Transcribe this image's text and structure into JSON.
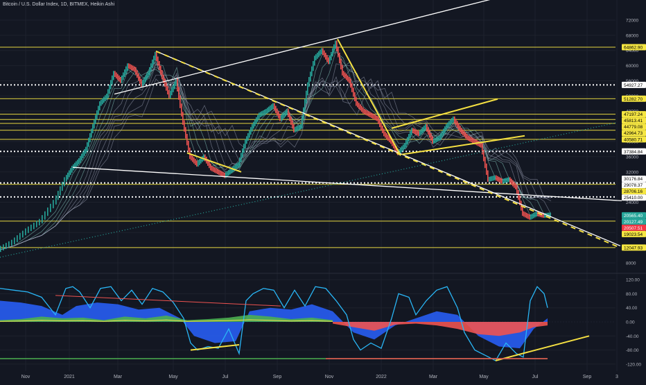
{
  "header": {
    "title": "Bitcoin / U.S. Dollar Index, 1D, BITMEX, Heikin Ashi"
  },
  "colors": {
    "background": "#131722",
    "grid": "#1e222d",
    "axis_text": "#b2b5be",
    "bull": "#26a69a",
    "bear": "#ef5350",
    "level": "#e6d740",
    "trend_yellow": "#f5e042",
    "trend_white": "#ffffff",
    "label_yellow_bg": "#f5e642",
    "label_white_bg": "#ffffff",
    "label_green_bg": "#26a69a",
    "label_red_bg": "#f23645",
    "osc_blue": "#2962ff",
    "osc_line": "#29b6f6",
    "osc_green": "#4caf50",
    "osc_red": "#ef5350",
    "osc_yellow": "#f5e042"
  },
  "chart_data": [
    {
      "type": "line",
      "title": "Bitcoin / U.S. Dollar Index, 1D, BITMEX, Heikin Ashi",
      "x_ticks": [
        "Nov",
        "2021",
        "Mar",
        "May",
        "Jul",
        "Sep",
        "Nov",
        "2022",
        "Mar",
        "May",
        "Jul",
        "Sep",
        "3"
      ],
      "y_ticks": [
        72000,
        68000,
        64000,
        60000,
        56000,
        52000,
        48000,
        44000,
        40000,
        36000,
        32000,
        28000,
        24000,
        20000,
        16000,
        12000,
        8000
      ],
      "ylim": [
        6000,
        74000
      ],
      "price_labels": [
        {
          "value": "64862.90",
          "style": "yellow"
        },
        {
          "value": "54927.27",
          "style": "white"
        },
        {
          "value": "51282.70",
          "style": "yellow"
        },
        {
          "value": "47197.24",
          "style": "yellow"
        },
        {
          "value": "45813.41",
          "style": "yellow"
        },
        {
          "value": "44779.08",
          "style": "yellow"
        },
        {
          "value": "42964.73",
          "style": "yellow"
        },
        {
          "value": "40580.71",
          "style": "yellow"
        },
        {
          "value": "37384.84",
          "style": "white"
        },
        {
          "value": "30176.84",
          "style": "white"
        },
        {
          "value": "29078.37",
          "style": "white"
        },
        {
          "value": "28706.16",
          "style": "yellow"
        },
        {
          "value": "25410.00",
          "style": "white"
        },
        {
          "value": "20565.40",
          "style": "green"
        },
        {
          "value": "20127.49",
          "style": "green"
        },
        {
          "value": "20507.51",
          "style": "red"
        },
        {
          "value": "19023.54",
          "style": "yellow"
        },
        {
          "value": "12047.93",
          "style": "yellow"
        }
      ],
      "yellow_levels": [
        64862.9,
        51282.7,
        47197.24,
        45813.41,
        44779.08,
        42964.73,
        40580.71,
        28706.16,
        19023.54,
        12047.93
      ],
      "dotted_levels": [
        54927.27,
        37384.84,
        29078.37,
        25410.0
      ],
      "series": [
        {
          "values": [
            [
              0,
              11500
            ],
            [
              20,
              13500
            ],
            [
              40,
              16500
            ],
            [
              60,
              19000
            ],
            [
              80,
              24000
            ],
            [
              95,
              30000
            ],
            [
              105,
              33000
            ],
            [
              115,
              35000
            ],
            [
              125,
              38000
            ],
            [
              135,
              44000
            ],
            [
              145,
              50000
            ],
            [
              155,
              52000
            ],
            [
              165,
              58000
            ],
            [
              175,
              56000
            ],
            [
              185,
              60000
            ],
            [
              195,
              59000
            ],
            [
              205,
              55000
            ],
            [
              215,
              58000
            ],
            [
              225,
              63000
            ],
            [
              235,
              57000
            ],
            [
              245,
              52000
            ],
            [
              255,
              56000
            ],
            [
              265,
              45000
            ],
            [
              275,
              36000
            ],
            [
              285,
              34000
            ],
            [
              295,
              36000
            ],
            [
              305,
              33000
            ],
            [
              315,
              32000
            ],
            [
              325,
              31000
            ],
            [
              335,
              32500
            ],
            [
              345,
              34000
            ],
            [
              355,
              40000
            ],
            [
              365,
              44000
            ],
            [
              375,
              47000
            ],
            [
              385,
              48000
            ],
            [
              395,
              49500
            ],
            [
              405,
              46000
            ],
            [
              415,
              48000
            ],
            [
              425,
              43000
            ],
            [
              435,
              44000
            ],
            [
              445,
              55000
            ],
            [
              455,
              62000
            ],
            [
              465,
              64000
            ],
            [
              475,
              61000
            ],
            [
              485,
              66000
            ],
            [
              495,
              58000
            ],
            [
              505,
              56000
            ],
            [
              515,
              50000
            ],
            [
              525,
              48000
            ],
            [
              535,
              47000
            ],
            [
              545,
              46000
            ],
            [
              555,
              42000
            ],
            [
              565,
              40000
            ],
            [
              575,
              37000
            ],
            [
              585,
              39000
            ],
            [
              595,
              43000
            ],
            [
              605,
              42000
            ],
            [
              615,
              44000
            ],
            [
              625,
              40000
            ],
            [
              635,
              41000
            ],
            [
              645,
              44000
            ],
            [
              655,
              46000
            ],
            [
              665,
              43000
            ],
            [
              675,
              41000
            ],
            [
              685,
              40000
            ],
            [
              695,
              39000
            ],
            [
              705,
              30000
            ],
            [
              715,
              30500
            ],
            [
              725,
              29500
            ],
            [
              735,
              30000
            ],
            [
              745,
              28000
            ],
            [
              755,
              21000
            ],
            [
              765,
              20000
            ],
            [
              775,
              21000
            ],
            [
              785,
              20500
            ],
            [
              795,
              20700
            ]
          ]
        }
      ],
      "trendlines": [
        {
          "style": "white",
          "from": [
            165,
            52500
          ],
          "to": [
            720,
            78000
          ]
        },
        {
          "style": "white",
          "from": [
            225,
            63800
          ],
          "to": [
            895,
            12500
          ]
        },
        {
          "style": "white",
          "from": [
            105,
            33200
          ],
          "to": [
            897,
            24400
          ]
        },
        {
          "style": "yellow_dashed",
          "from": [
            225,
            63800
          ],
          "to": [
            895,
            12000
          ]
        },
        {
          "style": "yellow",
          "from": [
            565,
            43500
          ],
          "to": [
            718,
            51200
          ]
        },
        {
          "style": "yellow",
          "from": [
            580,
            36600
          ],
          "to": [
            757,
            41500
          ]
        },
        {
          "style": "yellow",
          "from": [
            270,
            37000
          ],
          "to": [
            348,
            32000
          ]
        },
        {
          "style": "yellow",
          "from": [
            487,
            67000
          ],
          "to": [
            578,
            36300
          ]
        },
        {
          "style": "teal_dotted",
          "from": [
            0,
            9500
          ],
          "to": [
            890,
            45000
          ]
        }
      ]
    },
    {
      "type": "area",
      "y_ticks": [
        "120.00",
        "80.00",
        "40.00",
        "0.00",
        "-40.00",
        "-80.00",
        "-120.00"
      ],
      "ylim": [
        -130,
        130
      ],
      "series": [
        {
          "values": [
            [
              0,
              95
            ],
            [
              20,
              90
            ],
            [
              40,
              85
            ],
            [
              60,
              70
            ],
            [
              80,
              20
            ],
            [
              95,
              95
            ],
            [
              105,
              100
            ],
            [
              115,
              85
            ],
            [
              130,
              40
            ],
            [
              145,
              95
            ],
            [
              160,
              100
            ],
            [
              175,
              60
            ],
            [
              190,
              90
            ],
            [
              205,
              50
            ],
            [
              220,
              95
            ],
            [
              235,
              85
            ],
            [
              250,
              55
            ],
            [
              265,
              10
            ],
            [
              275,
              -60
            ],
            [
              285,
              -80
            ],
            [
              300,
              -70
            ],
            [
              315,
              -75
            ],
            [
              330,
              -20
            ],
            [
              345,
              -90
            ],
            [
              355,
              60
            ],
            [
              365,
              80
            ],
            [
              380,
              95
            ],
            [
              395,
              90
            ],
            [
              410,
              40
            ],
            [
              425,
              90
            ],
            [
              440,
              45
            ],
            [
              455,
              100
            ],
            [
              470,
              95
            ],
            [
              485,
              60
            ],
            [
              500,
              20
            ],
            [
              510,
              -50
            ],
            [
              520,
              -80
            ],
            [
              535,
              -60
            ],
            [
              550,
              -75
            ],
            [
              565,
              10
            ],
            [
              575,
              80
            ],
            [
              590,
              70
            ],
            [
              600,
              20
            ],
            [
              615,
              60
            ],
            [
              630,
              90
            ],
            [
              645,
              100
            ],
            [
              660,
              40
            ],
            [
              670,
              -30
            ],
            [
              685,
              -80
            ],
            [
              700,
              -95
            ],
            [
              715,
              -110
            ],
            [
              730,
              -60
            ],
            [
              745,
              -90
            ],
            [
              755,
              -100
            ],
            [
              765,
              60
            ],
            [
              775,
              100
            ],
            [
              785,
              80
            ],
            [
              790,
              40
            ]
          ]
        },
        {
          "values": [
            [
              0,
              60
            ],
            [
              30,
              55
            ],
            [
              60,
              45
            ],
            [
              90,
              20
            ],
            [
              110,
              45
            ],
            [
              140,
              55
            ],
            [
              170,
              50
            ],
            [
              200,
              35
            ],
            [
              230,
              40
            ],
            [
              260,
              10
            ],
            [
              280,
              -40
            ],
            [
              310,
              -60
            ],
            [
              340,
              -55
            ],
            [
              360,
              30
            ],
            [
              390,
              40
            ],
            [
              420,
              35
            ],
            [
              450,
              50
            ],
            [
              480,
              30
            ],
            [
              510,
              -30
            ],
            [
              540,
              -50
            ],
            [
              570,
              -10
            ],
            [
              600,
              10
            ],
            [
              630,
              30
            ],
            [
              660,
              20
            ],
            [
              690,
              -40
            ],
            [
              720,
              -70
            ],
            [
              750,
              -75
            ],
            [
              770,
              -20
            ],
            [
              790,
              10
            ]
          ]
        },
        {
          "values": [
            [
              0,
              5
            ],
            [
              30,
              8
            ],
            [
              60,
              15
            ],
            [
              90,
              10
            ],
            [
              120,
              12
            ],
            [
              150,
              5
            ],
            [
              180,
              15
            ],
            [
              210,
              10
            ],
            [
              240,
              18
            ],
            [
              270,
              5
            ],
            [
              300,
              8
            ],
            [
              330,
              12
            ],
            [
              360,
              20
            ],
            [
              390,
              15
            ],
            [
              420,
              8
            ],
            [
              450,
              12
            ],
            [
              480,
              5
            ]
          ]
        },
        {
          "values": [
            [
              480,
              -5
            ],
            [
              510,
              -15
            ],
            [
              540,
              -25
            ],
            [
              570,
              -8
            ],
            [
              600,
              -5
            ],
            [
              630,
              -10
            ],
            [
              660,
              -20
            ],
            [
              690,
              -35
            ],
            [
              720,
              -40
            ],
            [
              750,
              -30
            ],
            [
              770,
              -15
            ],
            [
              790,
              -10
            ]
          ]
        }
      ],
      "trendlines": [
        {
          "style": "yellow",
          "from": [
            715,
            -110
          ],
          "to": [
            850,
            -40
          ]
        },
        {
          "style": "yellow",
          "from": [
            275,
            -80
          ],
          "to": [
            345,
            -65
          ]
        },
        {
          "style": "red",
          "from": [
            80,
            75
          ],
          "to": [
            405,
            45
          ]
        }
      ]
    }
  ]
}
